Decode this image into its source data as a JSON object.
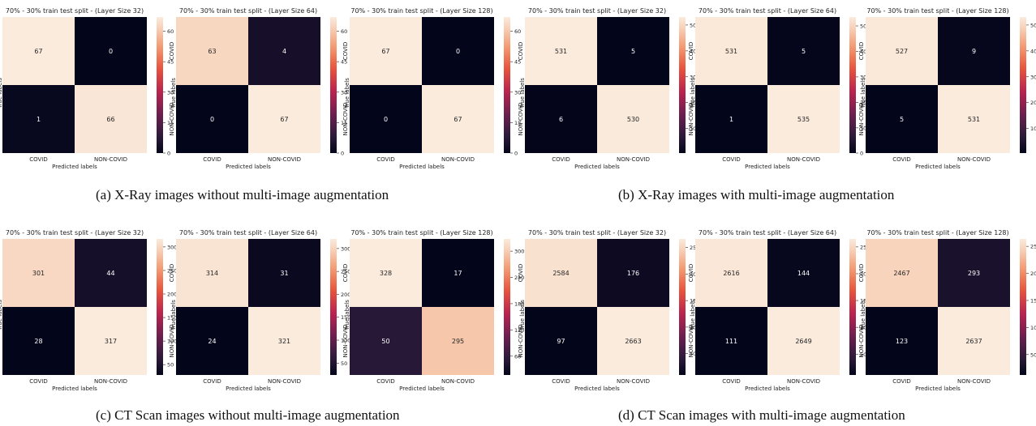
{
  "chart_data": [
    {
      "type": "heatmap",
      "title": "70% - 30% train test split - (Layer Size 32)",
      "xlabel": "Predicted labels",
      "ylabel": "True labels",
      "x_categories": [
        "COVID",
        "NON-COVID"
      ],
      "y_categories": [
        "COVID",
        "NON-COVID"
      ],
      "values": [
        [
          67,
          0
        ],
        [
          1,
          66
        ]
      ],
      "colorbar_ticks": [
        0,
        15,
        30,
        45,
        60
      ]
    },
    {
      "type": "heatmap",
      "title": "70% - 30% train test split - (Layer Size 64)",
      "xlabel": "Predicted labels",
      "ylabel": "True labels",
      "x_categories": [
        "COVID",
        "NON-COVID"
      ],
      "y_categories": [
        "COVID",
        "NON-COVID"
      ],
      "values": [
        [
          63,
          4
        ],
        [
          0,
          67
        ]
      ],
      "colorbar_ticks": [
        0,
        15,
        30,
        45,
        60
      ]
    },
    {
      "type": "heatmap",
      "title": "70% - 30% train test split - (Layer Size 128)",
      "xlabel": "Predicted labels",
      "ylabel": "True labels",
      "x_categories": [
        "COVID",
        "NON-COVID"
      ],
      "y_categories": [
        "COVID",
        "NON-COVID"
      ],
      "values": [
        [
          67,
          0
        ],
        [
          0,
          67
        ]
      ],
      "colorbar_ticks": [
        0,
        15,
        30,
        45,
        60
      ]
    },
    {
      "type": "heatmap",
      "title": "70% - 30% train test split - (Layer Size 32)",
      "xlabel": "Predicted labels",
      "ylabel": "True labels",
      "x_categories": [
        "COVID",
        "NON-COVID"
      ],
      "y_categories": [
        "COVID",
        "NON-COVID"
      ],
      "values": [
        [
          531,
          5
        ],
        [
          6,
          530
        ]
      ],
      "colorbar_ticks": [
        100,
        200,
        300,
        400,
        500
      ]
    },
    {
      "type": "heatmap",
      "title": "70% - 30% train test split - (Layer Size 64)",
      "xlabel": "Predicted labels",
      "ylabel": "True labels",
      "x_categories": [
        "COVID",
        "NON-COVID"
      ],
      "y_categories": [
        "COVID",
        "NON-COVID"
      ],
      "values": [
        [
          531,
          5
        ],
        [
          1,
          535
        ]
      ],
      "colorbar_ticks": [
        0,
        100,
        200,
        300,
        400,
        500
      ]
    },
    {
      "type": "heatmap",
      "title": "70% - 30% train test split - (Layer Size 128)",
      "xlabel": "Predicted labels",
      "ylabel": "True labels",
      "x_categories": [
        "COVID",
        "NON-COVID"
      ],
      "y_categories": [
        "COVID",
        "NON-COVID"
      ],
      "values": [
        [
          527,
          9
        ],
        [
          5,
          531
        ]
      ],
      "colorbar_ticks": [
        100,
        200,
        300,
        400,
        500
      ]
    },
    {
      "type": "heatmap",
      "title": "70% - 30% train test split - (Layer Size 32)",
      "xlabel": "Predicted labels",
      "ylabel": "True labels",
      "x_categories": [
        "COVID",
        "NON-COVID"
      ],
      "y_categories": [
        "COVID",
        "NON-COVID"
      ],
      "values": [
        [
          301,
          44
        ],
        [
          28,
          317
        ]
      ],
      "colorbar_ticks": [
        50,
        100,
        150,
        200,
        250,
        300
      ]
    },
    {
      "type": "heatmap",
      "title": "70% - 30% train test split - (Layer Size 64)",
      "xlabel": "Predicted labels",
      "ylabel": "True labels",
      "x_categories": [
        "COVID",
        "NON-COVID"
      ],
      "y_categories": [
        "COVID",
        "NON-COVID"
      ],
      "values": [
        [
          314,
          31
        ],
        [
          24,
          321
        ]
      ],
      "colorbar_ticks": [
        50,
        100,
        150,
        200,
        250,
        300
      ]
    },
    {
      "type": "heatmap",
      "title": "70% - 30% train test split - (Layer Size 128)",
      "xlabel": "Predicted labels",
      "ylabel": "True labels",
      "x_categories": [
        "COVID",
        "NON-COVID"
      ],
      "y_categories": [
        "COVID",
        "NON-COVID"
      ],
      "values": [
        [
          328,
          17
        ],
        [
          50,
          295
        ]
      ],
      "colorbar_ticks": [
        60,
        120,
        180,
        240,
        300
      ]
    },
    {
      "type": "heatmap",
      "title": "70% - 30% train test split - (Layer Size 32)",
      "xlabel": "Predicted labels",
      "ylabel": "True labels",
      "x_categories": [
        "COVID",
        "NON-COVID"
      ],
      "y_categories": [
        "COVID",
        "NON-COVID"
      ],
      "values": [
        [
          2584,
          176
        ],
        [
          97,
          2663
        ]
      ],
      "colorbar_ticks": [
        500,
        1000,
        1500,
        2000,
        2500
      ]
    },
    {
      "type": "heatmap",
      "title": "70% - 30% train test split - (Layer Size 64)",
      "xlabel": "Predicted labels",
      "ylabel": "True labels",
      "x_categories": [
        "COVID",
        "NON-COVID"
      ],
      "y_categories": [
        "COVID",
        "NON-COVID"
      ],
      "values": [
        [
          2616,
          144
        ],
        [
          111,
          2649
        ]
      ],
      "colorbar_ticks": [
        500,
        1000,
        1500,
        2000,
        2500
      ]
    },
    {
      "type": "heatmap",
      "title": "70% - 30% train test split - (Layer Size 128)",
      "xlabel": "Predicted labels",
      "ylabel": "True labels",
      "x_categories": [
        "COVID",
        "NON-COVID"
      ],
      "y_categories": [
        "COVID",
        "NON-COVID"
      ],
      "values": [
        [
          2467,
          293
        ],
        [
          123,
          2637
        ]
      ],
      "colorbar_ticks": [
        500,
        1000,
        1500,
        2000,
        2500
      ]
    }
  ],
  "captions": [
    "(a) X-Ray images without multi-image augmentation",
    "(b) X-Ray images with multi-image augmentation",
    "(c) CT Scan images without multi-image augmentation",
    "(d) CT Scan images with multi-image augmentation"
  ]
}
